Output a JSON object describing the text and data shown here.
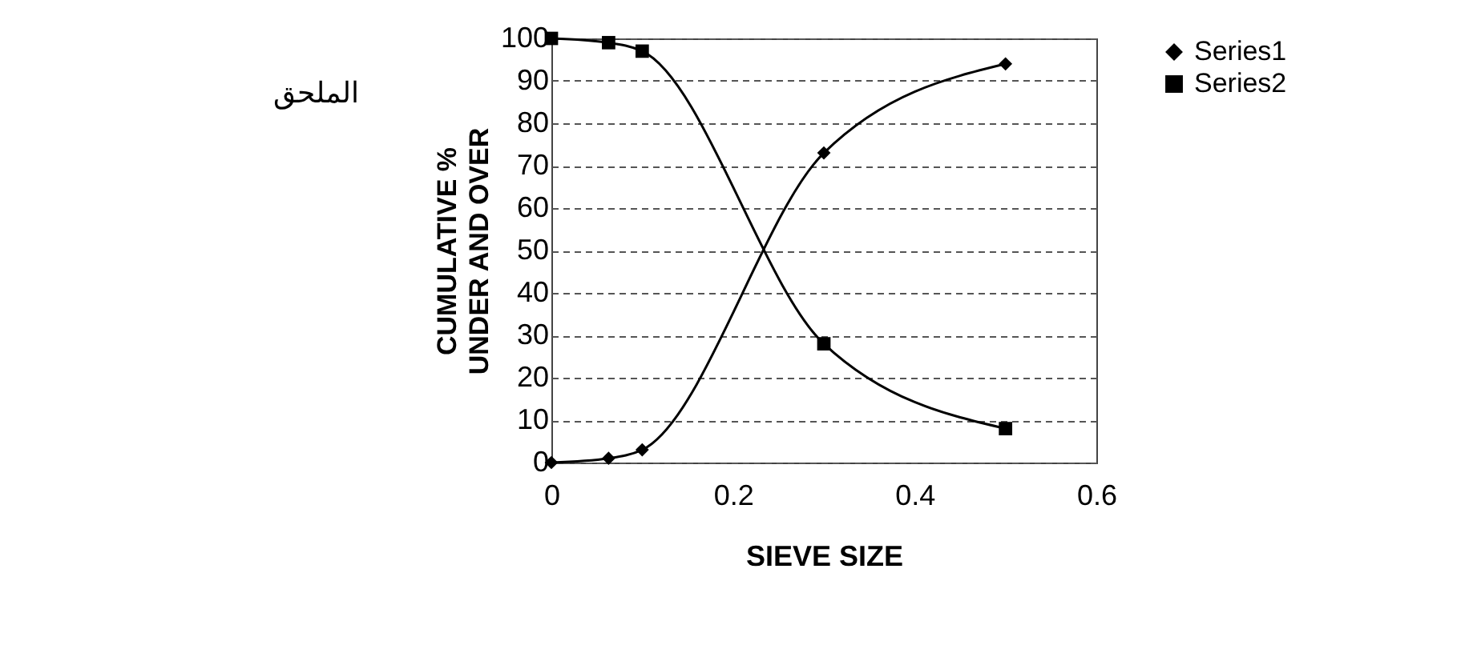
{
  "chart_data": {
    "type": "line",
    "xlabel": "SIEVE SIZE",
    "ylabel": "CUMULATIVE % UNDER AND OVER",
    "annotations": [
      "الملحق"
    ],
    "series": [
      {
        "name": "Series1",
        "color": "#000000",
        "marker": "diamond",
        "x": [
          0,
          0.063,
          0.1,
          0.3,
          0.5
        ],
        "values": [
          0,
          1,
          3,
          73,
          94
        ]
      },
      {
        "name": "Series2",
        "color": "#000000",
        "marker": "square",
        "x": [
          0,
          0.063,
          0.1,
          0.3,
          0.5
        ],
        "values": [
          100,
          99,
          97,
          28,
          8
        ]
      }
    ],
    "xlim": [
      0,
      0.6
    ],
    "xticks": [
      0,
      0.2,
      0.4,
      0.6
    ],
    "ylim": [
      0,
      100
    ],
    "yticks": [
      0,
      10,
      20,
      30,
      40,
      50,
      60,
      70,
      80,
      90,
      100
    ],
    "grid": "y",
    "legend": "right",
    "line_style": "solid"
  }
}
